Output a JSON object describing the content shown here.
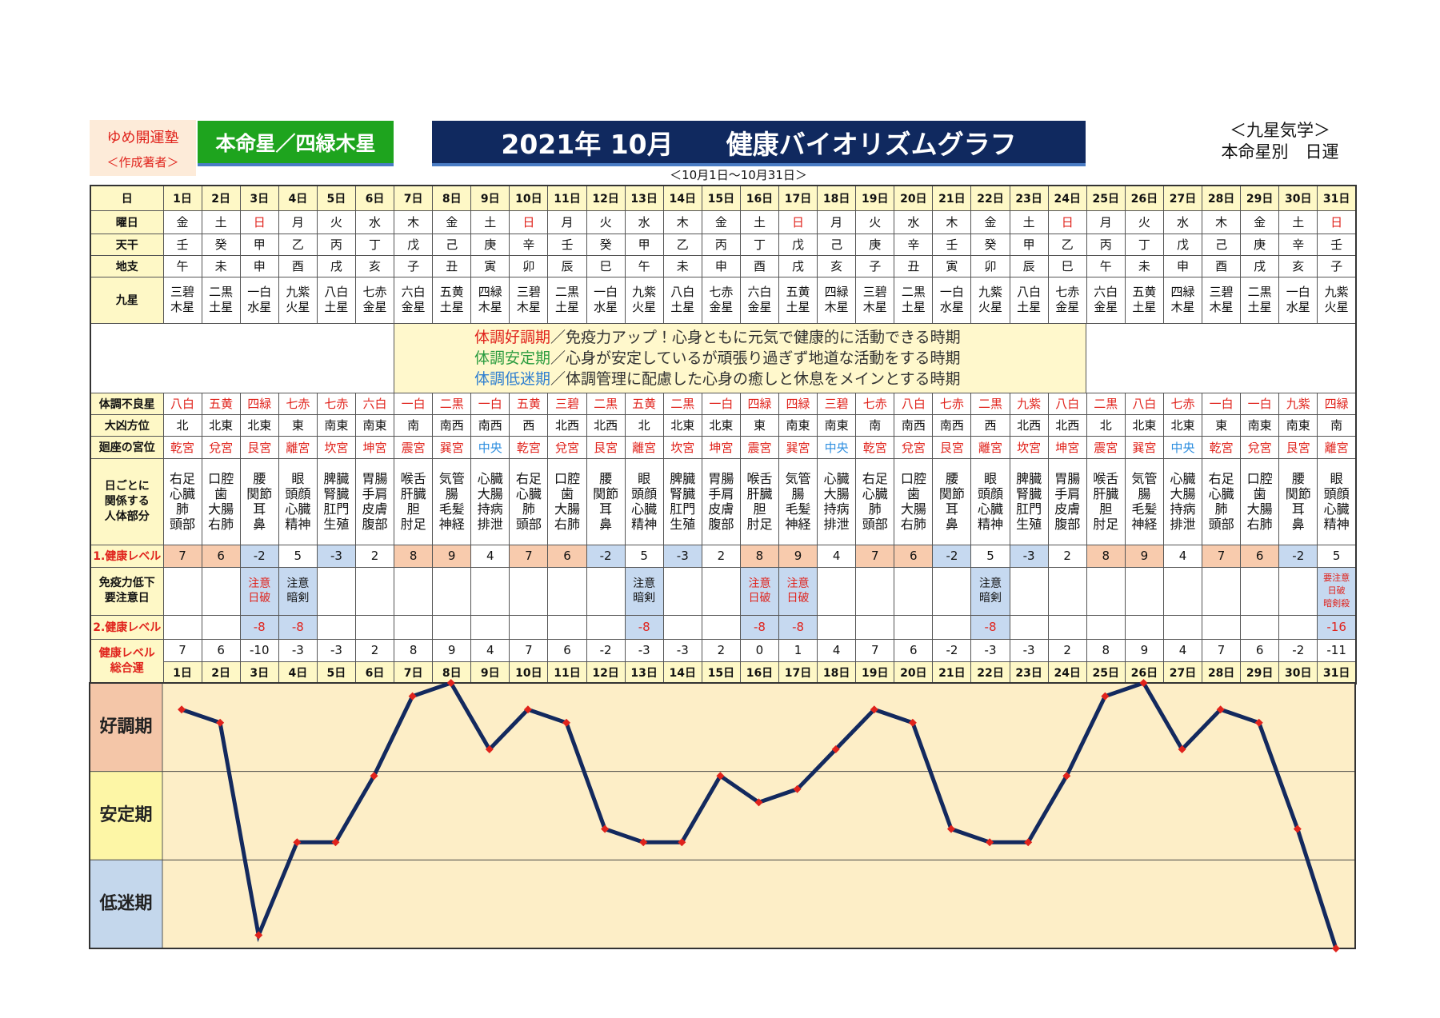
{
  "header": {
    "school": "ゆめ開運塾",
    "author": "＜作成著者＞",
    "star_badge": "本命星／四緑木星",
    "title": "2021年 10月　　健康バイオリズムグラフ",
    "category": "＜九星気学＞",
    "subcategory": "本命星別　日運",
    "period": "＜10月1日～10月31日＞"
  },
  "table": {
    "labels": {
      "day": "日",
      "weekday": "曜日",
      "stem": "天干",
      "branch": "地支",
      "star": "九星",
      "bad_star": "体調不良星",
      "bad_direction": "大凶方位",
      "palace": "廻座の宮位",
      "body": "日ごとに関係する人体部分",
      "level1": "1.健康レベル",
      "caution": "免疫力低下要注意日",
      "level2": "2.健康レベル",
      "total": "健康レベル総合運"
    },
    "weekday": [
      "金",
      "土",
      "日",
      "月",
      "火",
      "水",
      "木",
      "金",
      "土",
      "日",
      "月",
      "火",
      "水",
      "木",
      "金",
      "土",
      "日",
      "月",
      "火",
      "水",
      "木",
      "金",
      "土",
      "日",
      "月",
      "火",
      "水",
      "木",
      "金",
      "土",
      "日"
    ],
    "stem": [
      "壬",
      "癸",
      "甲",
      "乙",
      "丙",
      "丁",
      "戊",
      "己",
      "庚",
      "辛",
      "壬",
      "癸",
      "甲",
      "乙",
      "丙",
      "丁",
      "戊",
      "己",
      "庚",
      "辛",
      "壬",
      "癸",
      "甲",
      "乙",
      "丙",
      "丁",
      "戊",
      "己",
      "庚",
      "辛",
      "壬"
    ],
    "branch": [
      "午",
      "未",
      "申",
      "酉",
      "戌",
      "亥",
      "子",
      "丑",
      "寅",
      "卯",
      "辰",
      "巳",
      "午",
      "未",
      "申",
      "酉",
      "戌",
      "亥",
      "子",
      "丑",
      "寅",
      "卯",
      "辰",
      "巳",
      "午",
      "未",
      "申",
      "酉",
      "戌",
      "亥",
      "子"
    ],
    "star": [
      "三碧木星",
      "二黒土星",
      "一白水星",
      "九紫火星",
      "八白土星",
      "七赤金星",
      "六白金星",
      "五黄土星",
      "四緑木星",
      "三碧木星",
      "二黒土星",
      "一白水星",
      "九紫火星",
      "八白土星",
      "七赤金星",
      "六白金星",
      "五黄土星",
      "四緑木星",
      "三碧木星",
      "二黒土星",
      "一白水星",
      "九紫火星",
      "八白土星",
      "七赤金星",
      "六白金星",
      "五黄土星",
      "四緑木星",
      "三碧木星",
      "二黒土星",
      "一白水星",
      "九紫火星"
    ],
    "legend": [
      {
        "term": "体調好調期",
        "text": "／免疫力アップ！心身ともに元気で健康的に活動できる時期"
      },
      {
        "term": "体調安定期",
        "text": "／心身が安定しているが頑張り過ぎず地道な活動をする時期"
      },
      {
        "term": "体調低迷期",
        "text": "／体調管理に配慮した心身の癒しと休息をメインとする時期"
      }
    ],
    "bad_star": [
      "八白",
      "五黄",
      "四緑",
      "七赤",
      "七赤",
      "六白",
      "一白",
      "二黒",
      "一白",
      "五黄",
      "三碧",
      "二黒",
      "五黄",
      "二黒",
      "一白",
      "四緑",
      "四緑",
      "三碧",
      "七赤",
      "八白",
      "七赤",
      "二黒",
      "九紫",
      "八白",
      "二黒",
      "八白",
      "七赤",
      "一白",
      "一白",
      "九紫",
      "四緑"
    ],
    "bad_direction": [
      "北",
      "北東",
      "北東",
      "東",
      "南東",
      "南東",
      "南",
      "南西",
      "南西",
      "西",
      "北西",
      "北西",
      "北",
      "北東",
      "北東",
      "東",
      "南東",
      "南東",
      "南",
      "南西",
      "南西",
      "西",
      "北西",
      "北西",
      "北",
      "北東",
      "北東",
      "東",
      "南東",
      "南東",
      "南"
    ],
    "palace": [
      "乾宮",
      "兌宮",
      "艮宮",
      "離宮",
      "坎宮",
      "坤宮",
      "震宮",
      "巽宮",
      "中央",
      "乾宮",
      "兌宮",
      "艮宮",
      "離宮",
      "坎宮",
      "坤宮",
      "震宮",
      "巽宮",
      "中央",
      "乾宮",
      "兌宮",
      "艮宮",
      "離宮",
      "坎宮",
      "坤宮",
      "震宮",
      "巽宮",
      "中央",
      "乾宮",
      "兌宮",
      "艮宮",
      "離宮"
    ],
    "body": [
      [
        "右足",
        "心臓",
        "肺",
        "頭部"
      ],
      [
        "口腔",
        "歯",
        "大腸",
        "右肺"
      ],
      [
        "腰",
        "関節",
        "耳",
        "鼻"
      ],
      [
        "眼",
        "頭顔",
        "心臓",
        "精神"
      ],
      [
        "脾臓",
        "腎臓",
        "肛門",
        "生殖"
      ],
      [
        "胃腸",
        "手肩",
        "皮膚",
        "腹部"
      ],
      [
        "喉舌",
        "肝臓",
        "胆",
        "肘足"
      ],
      [
        "気管",
        "腸",
        "毛髪",
        "神経"
      ],
      [
        "心臓",
        "大腸",
        "持病",
        "排泄"
      ],
      [
        "右足",
        "心臓",
        "肺",
        "頭部"
      ],
      [
        "口腔",
        "歯",
        "大腸",
        "右肺"
      ],
      [
        "腰",
        "関節",
        "耳",
        "鼻"
      ],
      [
        "眼",
        "頭顔",
        "心臓",
        "精神"
      ],
      [
        "脾臓",
        "腎臓",
        "肛門",
        "生殖"
      ],
      [
        "胃腸",
        "手肩",
        "皮膚",
        "腹部"
      ],
      [
        "喉舌",
        "肝臓",
        "胆",
        "肘足"
      ],
      [
        "気管",
        "腸",
        "毛髪",
        "神経"
      ],
      [
        "心臓",
        "大腸",
        "持病",
        "排泄"
      ],
      [
        "右足",
        "心臓",
        "肺",
        "頭部"
      ],
      [
        "口腔",
        "歯",
        "大腸",
        "右肺"
      ],
      [
        "腰",
        "関節",
        "耳",
        "鼻"
      ],
      [
        "眼",
        "頭顔",
        "心臓",
        "精神"
      ],
      [
        "脾臓",
        "腎臓",
        "肛門",
        "生殖"
      ],
      [
        "胃腸",
        "手肩",
        "皮膚",
        "腹部"
      ],
      [
        "喉舌",
        "肝臓",
        "胆",
        "肘足"
      ],
      [
        "気管",
        "腸",
        "毛髪",
        "神経"
      ],
      [
        "心臓",
        "大腸",
        "持病",
        "排泄"
      ],
      [
        "右足",
        "心臓",
        "肺",
        "頭部"
      ],
      [
        "口腔",
        "歯",
        "大腸",
        "右肺"
      ],
      [
        "腰",
        "関節",
        "耳",
        "鼻"
      ],
      [
        "眼",
        "頭顔",
        "心臓",
        "精神"
      ]
    ],
    "level1": [
      7,
      6,
      -2,
      5,
      -3,
      2,
      8,
      9,
      4,
      7,
      6,
      -2,
      5,
      -3,
      2,
      8,
      9,
      4,
      7,
      6,
      -2,
      5,
      -3,
      2,
      8,
      9,
      4,
      7,
      6,
      -2,
      5
    ],
    "caution": [
      null,
      null,
      [
        "注意",
        "日破"
      ],
      [
        "注意",
        "暗剣"
      ],
      null,
      null,
      null,
      null,
      null,
      null,
      null,
      null,
      [
        "注意",
        "暗剣"
      ],
      null,
      null,
      [
        "注意",
        "日破"
      ],
      [
        "注意",
        "日破"
      ],
      null,
      null,
      null,
      null,
      [
        "注意",
        "暗剣"
      ],
      null,
      null,
      null,
      null,
      null,
      null,
      null,
      null,
      [
        "要注意",
        "日破",
        "暗剣殺"
      ]
    ],
    "level2": [
      null,
      null,
      -8,
      -8,
      null,
      null,
      null,
      null,
      null,
      null,
      null,
      null,
      -8,
      null,
      null,
      -8,
      -8,
      null,
      null,
      null,
      null,
      -8,
      null,
      null,
      null,
      null,
      null,
      null,
      null,
      null,
      -16
    ]
  },
  "chart_data": {
    "type": "line",
    "categories": [
      "1日",
      "2日",
      "3日",
      "4日",
      "5日",
      "6日",
      "7日",
      "8日",
      "9日",
      "10日",
      "11日",
      "12日",
      "13日",
      "14日",
      "15日",
      "16日",
      "17日",
      "18日",
      "19日",
      "20日",
      "21日",
      "22日",
      "23日",
      "24日",
      "25日",
      "26日",
      "27日",
      "28日",
      "29日",
      "30日",
      "31日"
    ],
    "values": [
      7,
      6,
      -10,
      -3,
      -3,
      2,
      8,
      9,
      4,
      7,
      6,
      -2,
      -3,
      -3,
      2,
      0,
      1,
      4,
      7,
      6,
      -2,
      -3,
      -3,
      2,
      8,
      9,
      4,
      7,
      6,
      -2,
      -11
    ],
    "ylim": [
      -11,
      9
    ],
    "bands": [
      "好調期",
      "安定期",
      "低迷期"
    ],
    "color": "#13295e",
    "marker_color": "#e0231c"
  }
}
